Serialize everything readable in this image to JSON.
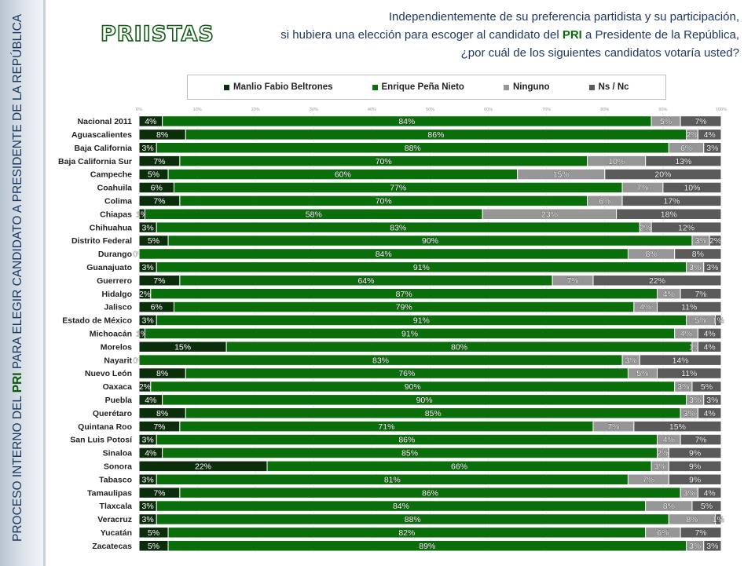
{
  "side_title": {
    "pre": "PROCESO INTERNO DEL ",
    "hl": "PRI",
    "post": " PARA ELEGIR CANDIDATO A PRESIDENTE DE LA REPÚBLICA"
  },
  "brand": "PRIISTAS",
  "question": {
    "line1": "Independientemente de su preferencia partidista y su participación,",
    "line2_pre": "si hubiera una elección para escoger al candidato del ",
    "line2_hl": "PRI",
    "line2_post": " a Presidente de la República,",
    "line3": "¿por cuál de los siguientes candidatos votaría usted?"
  },
  "colors": {
    "beltrones": "#0a2e0a",
    "pena": "#0a6e0a",
    "ninguno": "#969696",
    "nsnc": "#5a5a5a"
  },
  "chart_data": {
    "type": "bar",
    "orientation": "horizontal",
    "stacked": true,
    "xlim": [
      0,
      100
    ],
    "x_ticks": [
      "0%",
      "10%",
      "20%",
      "30%",
      "40%",
      "50%",
      "60%",
      "70%",
      "80%",
      "90%",
      "100%"
    ],
    "legend_position": "top",
    "categories": [
      "Nacional 2011",
      "Aguascalientes",
      "Baja California",
      "Baja California Sur",
      "Campeche",
      "Coahuila",
      "Colima",
      "Chiapas",
      "Chihuahua",
      "Distrito Federal",
      "Durango",
      "Guanajuato",
      "Guerrero",
      "Hidalgo",
      "Jalisco",
      "Estado de México",
      "Michoacán",
      "Morelos",
      "Nayarit",
      "Nuevo León",
      "Oaxaca",
      "Puebla",
      "Querétaro",
      "Quintana Roo",
      "San Luis Potosí",
      "Sinaloa",
      "Sonora",
      "Tabasco",
      "Tamaulipas",
      "Tlaxcala",
      "Veracruz",
      "Yucatán",
      "Zacatecas"
    ],
    "series": [
      {
        "name": "Manlio Fabio Beltrones",
        "values": [
          4,
          8,
          3,
          7,
          5,
          6,
          7,
          1,
          3,
          5,
          0,
          3,
          7,
          2,
          6,
          3,
          1,
          15,
          0,
          8,
          2,
          4,
          8,
          7,
          3,
          4,
          22,
          3,
          7,
          3,
          3,
          5,
          5
        ]
      },
      {
        "name": "Enrique Peña Nieto",
        "values": [
          84,
          86,
          88,
          70,
          60,
          77,
          70,
          58,
          83,
          90,
          84,
          91,
          64,
          87,
          79,
          91,
          91,
          80,
          83,
          76,
          90,
          90,
          85,
          71,
          86,
          85,
          66,
          81,
          86,
          84,
          88,
          82,
          89
        ]
      },
      {
        "name": "Ninguno",
        "values": [
          5,
          2,
          6,
          10,
          15,
          7,
          6,
          23,
          2,
          3,
          8,
          3,
          7,
          4,
          4,
          5,
          4,
          1,
          3,
          5,
          3,
          3,
          3,
          7,
          4,
          2,
          3,
          7,
          3,
          8,
          8,
          6,
          3
        ]
      },
      {
        "name": "Ns / Nc",
        "values": [
          7,
          4,
          3,
          13,
          20,
          10,
          17,
          18,
          12,
          2,
          8,
          3,
          22,
          7,
          11,
          1,
          4,
          4,
          14,
          11,
          5,
          3,
          4,
          15,
          7,
          9,
          9,
          9,
          4,
          5,
          1,
          7,
          3
        ]
      }
    ]
  }
}
